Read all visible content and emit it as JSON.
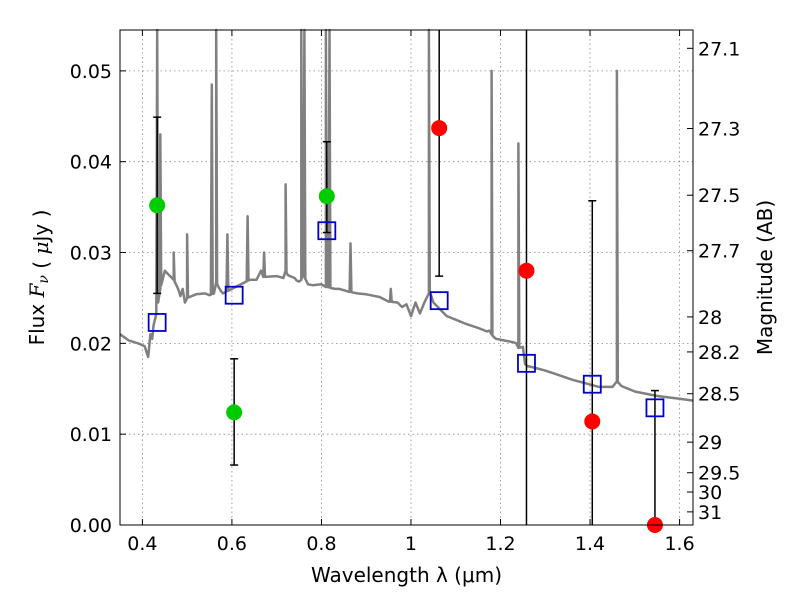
{
  "chart_data": {
    "type": "scatter",
    "xlabel": "Wavelength  λ (μm)",
    "ylabel": "Flux  F_ν  ( μJy )",
    "y2label": "Magnitude (AB)",
    "xlim": [
      0.35,
      1.63
    ],
    "ylim": [
      0.0,
      0.0545
    ],
    "grid": true,
    "x_ticks": [
      0.4,
      0.6,
      0.8,
      1.0,
      1.2,
      1.4,
      1.6
    ],
    "x_tick_labels": [
      "0.4",
      "0.6",
      "0.8",
      "1",
      "1.2",
      "1.4",
      "1.6"
    ],
    "y_ticks": [
      0.0,
      0.01,
      0.02,
      0.03,
      0.04,
      0.05
    ],
    "y_tick_labels": [
      "0.00",
      "0.01",
      "0.02",
      "0.03",
      "0.04",
      "0.05"
    ],
    "y2_ticks": [
      27.1,
      27.3,
      27.5,
      27.7,
      28,
      28.2,
      28.5,
      29,
      29.5,
      30,
      31
    ],
    "y2_tick_labels": [
      "27.1",
      "27.3",
      "27.5",
      "27.7",
      "28",
      "28.2",
      "28.5",
      "29",
      "29.5",
      "30",
      "31"
    ],
    "series": [
      {
        "kind": "model_spectrum",
        "color": "#808080",
        "x": [
          0.35,
          0.37,
          0.39,
          0.405,
          0.413,
          0.418,
          0.422,
          0.425,
          0.43,
          0.44,
          0.45,
          0.46,
          0.47,
          0.48,
          0.485,
          0.49,
          0.495,
          0.5,
          0.52,
          0.54,
          0.55,
          0.56,
          0.565,
          0.57,
          0.575,
          0.58,
          0.6,
          0.62,
          0.64,
          0.655,
          0.66,
          0.665,
          0.67,
          0.7,
          0.715,
          0.72,
          0.725,
          0.74,
          0.745,
          0.75,
          0.755,
          0.76,
          0.765,
          0.77,
          0.78,
          0.8,
          0.81,
          0.815,
          0.82,
          0.83,
          0.84,
          0.86,
          0.88,
          0.9,
          0.93,
          0.95,
          0.97,
          0.98,
          0.99,
          1.0,
          1.01,
          1.02,
          1.03,
          1.035,
          1.04,
          1.045,
          1.05,
          1.06,
          1.07,
          1.08,
          1.1,
          1.12,
          1.15,
          1.17,
          1.175,
          1.18,
          1.185,
          1.19,
          1.2,
          1.21,
          1.22,
          1.23,
          1.235,
          1.24,
          1.25,
          1.255,
          1.26,
          1.27,
          1.3,
          1.33,
          1.36,
          1.39,
          1.42,
          1.45,
          1.46,
          1.465,
          1.47,
          1.5,
          1.55,
          1.6,
          1.63
        ],
        "values": [
          0.021,
          0.0203,
          0.02,
          0.0197,
          0.0185,
          0.021,
          0.0205,
          0.022,
          0.023,
          0.026,
          0.028,
          0.0275,
          0.027,
          0.026,
          0.0252,
          0.026,
          0.0245,
          0.025,
          0.0254,
          0.0255,
          0.0253,
          0.0255,
          0.0268,
          0.0262,
          0.0258,
          0.0255,
          0.026,
          0.0265,
          0.027,
          0.027,
          0.0275,
          0.028,
          0.0273,
          0.0274,
          0.0272,
          0.028,
          0.0275,
          0.0272,
          0.0269,
          0.0268,
          0.027,
          0.0275,
          0.027,
          0.0265,
          0.0264,
          0.0265,
          0.0262,
          0.0262,
          0.0261,
          0.026,
          0.026,
          0.0257,
          0.0255,
          0.0254,
          0.0251,
          0.0246,
          0.0245,
          0.024,
          0.0243,
          0.023,
          0.0245,
          0.0233,
          0.0245,
          0.025,
          0.0255,
          0.0253,
          0.0245,
          0.024,
          0.0235,
          0.023,
          0.0226,
          0.0222,
          0.0217,
          0.0213,
          0.0214,
          0.021,
          0.0207,
          0.0205,
          0.0204,
          0.0203,
          0.0202,
          0.0201,
          0.02,
          0.0195,
          0.0196,
          0.0177,
          0.0175,
          0.0174,
          0.017,
          0.0165,
          0.016,
          0.0156,
          0.0152,
          0.0152,
          0.0158,
          0.0156,
          0.0153,
          0.0147,
          0.0142,
          0.0139,
          0.0137
        ]
      },
      {
        "kind": "model_photometry",
        "color": "#0000cc",
        "marker": "open-square",
        "x": [
          0.433,
          0.605,
          0.812,
          1.063,
          1.258,
          1.405,
          1.545
        ],
        "values": [
          0.0223,
          0.0253,
          0.0324,
          0.0247,
          0.0178,
          0.0155,
          0.0129
        ]
      },
      {
        "kind": "observed_optical",
        "color": "#00cc00",
        "marker": "circle",
        "x": [
          0.433,
          0.605,
          0.812
        ],
        "values": [
          0.0352,
          0.0124,
          0.0362
        ],
        "yerr_low": [
          0.0097,
          0.0058,
          0.004
        ],
        "yerr_high": [
          0.0097,
          0.0059,
          0.006
        ]
      },
      {
        "kind": "observed_nir",
        "color": "#ff0000",
        "marker": "circle",
        "x": [
          1.063,
          1.258,
          1.405,
          1.545
        ],
        "values": [
          0.0437,
          0.028,
          0.0114,
          0.0
        ],
        "yerr_low": [
          0.0163,
          0.028,
          0.0114,
          0.0
        ],
        "yerr_high": [
          0.0163,
          0.03,
          0.0243,
          0.0148
        ]
      }
    ],
    "emission_lines": [
      {
        "x": 0.433,
        "peak": 0.06
      },
      {
        "x": 0.44,
        "peak": 0.043
      },
      {
        "x": 0.47,
        "peak": 0.03
      },
      {
        "x": 0.5,
        "peak": 0.032
      },
      {
        "x": 0.555,
        "peak": 0.0485
      },
      {
        "x": 0.565,
        "peak": 0.06
      },
      {
        "x": 0.59,
        "peak": 0.032
      },
      {
        "x": 0.635,
        "peak": 0.034
      },
      {
        "x": 0.672,
        "peak": 0.03
      },
      {
        "x": 0.72,
        "peak": 0.0375
      },
      {
        "x": 0.755,
        "peak": 0.06
      },
      {
        "x": 0.762,
        "peak": 0.06
      },
      {
        "x": 0.81,
        "peak": 0.06
      },
      {
        "x": 0.818,
        "peak": 0.06
      },
      {
        "x": 0.865,
        "peak": 0.031
      },
      {
        "x": 0.955,
        "peak": 0.026
      },
      {
        "x": 1.04,
        "peak": 0.06
      },
      {
        "x": 1.18,
        "peak": 0.05
      },
      {
        "x": 1.24,
        "peak": 0.042
      },
      {
        "x": 1.46,
        "peak": 0.05
      }
    ]
  }
}
